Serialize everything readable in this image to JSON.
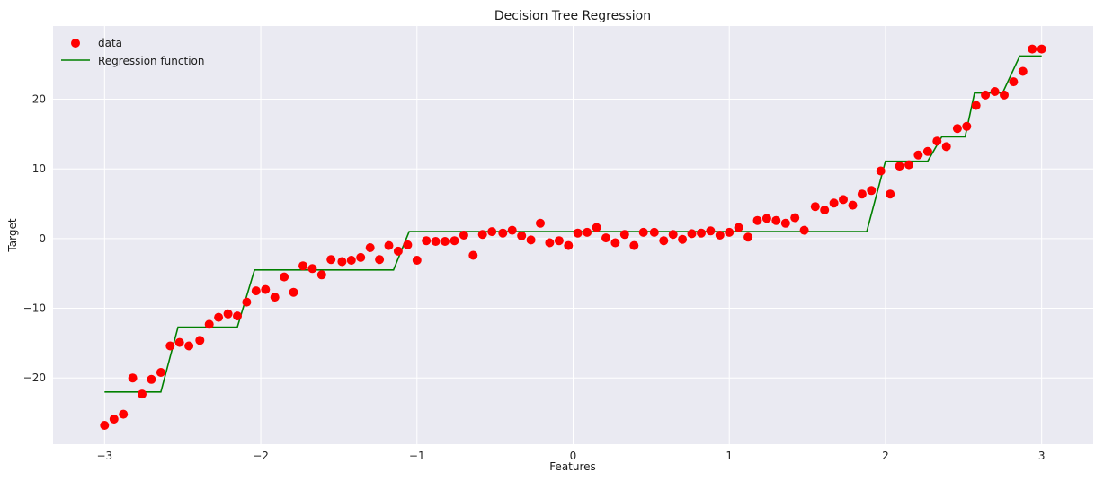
{
  "chart_data": {
    "type": "scatter",
    "title": "Decision Tree Regression",
    "xlabel": "Features",
    "ylabel": "Target",
    "xlim": [
      -3.33,
      3.33
    ],
    "ylim": [
      -29.5,
      30.5
    ],
    "xticks": [
      -3,
      -2,
      -1,
      0,
      1,
      2,
      3
    ],
    "yticks": [
      -20,
      -10,
      0,
      10,
      20
    ],
    "grid": true,
    "background": "#EAEAF2",
    "legend_position": "top-left",
    "series": [
      {
        "name": "data",
        "kind": "scatter",
        "color": "#FF0000",
        "x": [
          -3.0,
          -2.94,
          -2.88,
          -2.82,
          -2.76,
          -2.7,
          -2.64,
          -2.58,
          -2.52,
          -2.46,
          -2.39,
          -2.33,
          -2.27,
          -2.21,
          -2.15,
          -2.09,
          -2.03,
          -1.97,
          -1.91,
          -1.85,
          -1.79,
          -1.73,
          -1.67,
          -1.61,
          -1.55,
          -1.48,
          -1.42,
          -1.36,
          -1.3,
          -1.24,
          -1.18,
          -1.12,
          -1.06,
          -1.0,
          -0.94,
          -0.88,
          -0.82,
          -0.76,
          -0.7,
          -0.64,
          -0.58,
          -0.52,
          -0.45,
          -0.39,
          -0.33,
          -0.27,
          -0.21,
          -0.15,
          -0.09,
          -0.03,
          0.03,
          0.09,
          0.15,
          0.21,
          0.27,
          0.33,
          0.39,
          0.45,
          0.52,
          0.58,
          0.64,
          0.7,
          0.76,
          0.82,
          0.88,
          0.94,
          1.0,
          1.06,
          1.12,
          1.18,
          1.24,
          1.3,
          1.36,
          1.42,
          1.48,
          1.55,
          1.61,
          1.67,
          1.73,
          1.79,
          1.85,
          1.91,
          1.97,
          2.03,
          2.09,
          2.15,
          2.21,
          2.27,
          2.33,
          2.39,
          2.46,
          2.52,
          2.58,
          2.64,
          2.7,
          2.76,
          2.82,
          2.88,
          2.94,
          3.0
        ],
        "y": [
          -26.8,
          -25.9,
          -25.2,
          -20.0,
          -22.3,
          -20.2,
          -19.2,
          -15.4,
          -14.9,
          -15.4,
          -14.6,
          -12.3,
          -11.3,
          -10.8,
          -11.1,
          -9.1,
          -7.5,
          -7.3,
          -8.4,
          -5.5,
          -7.7,
          -3.9,
          -4.3,
          -5.2,
          -3.0,
          -3.3,
          -3.1,
          -2.7,
          -1.3,
          -3.0,
          -1.0,
          -1.8,
          -0.9,
          -3.1,
          -0.3,
          -0.4,
          -0.4,
          -0.3,
          0.5,
          -2.4,
          0.6,
          1.0,
          0.8,
          1.2,
          0.4,
          -0.2,
          2.2,
          -0.6,
          -0.3,
          -1.0,
          0.8,
          0.9,
          1.6,
          0.1,
          -0.6,
          0.6,
          -1.0,
          0.9,
          0.9,
          -0.3,
          0.6,
          -0.1,
          0.7,
          0.8,
          1.1,
          0.5,
          0.9,
          1.6,
          0.2,
          2.6,
          2.9,
          2.6,
          2.2,
          3.0,
          1.2,
          4.6,
          4.1,
          5.1,
          5.6,
          4.8,
          6.4,
          6.9,
          9.7,
          6.4,
          10.4,
          10.6,
          12.0,
          12.5,
          14.0,
          13.2,
          15.8,
          16.1,
          19.1,
          20.6,
          21.1,
          20.6,
          22.5,
          24.0,
          27.2,
          27.2
        ]
      },
      {
        "name": "Regression function",
        "kind": "step",
        "color": "#008000",
        "x": [
          -3.0,
          -2.64,
          -2.53,
          -2.15,
          -2.04,
          -1.15,
          -1.05,
          1.88,
          2.0,
          2.27,
          2.36,
          2.51,
          2.57,
          2.75,
          2.86,
          3.0
        ],
        "y": [
          -22.0,
          -22.0,
          -12.7,
          -12.7,
          -4.5,
          -4.5,
          1.0,
          1.0,
          11.1,
          11.1,
          14.6,
          14.6,
          20.9,
          20.9,
          26.2,
          26.2
        ]
      }
    ]
  }
}
